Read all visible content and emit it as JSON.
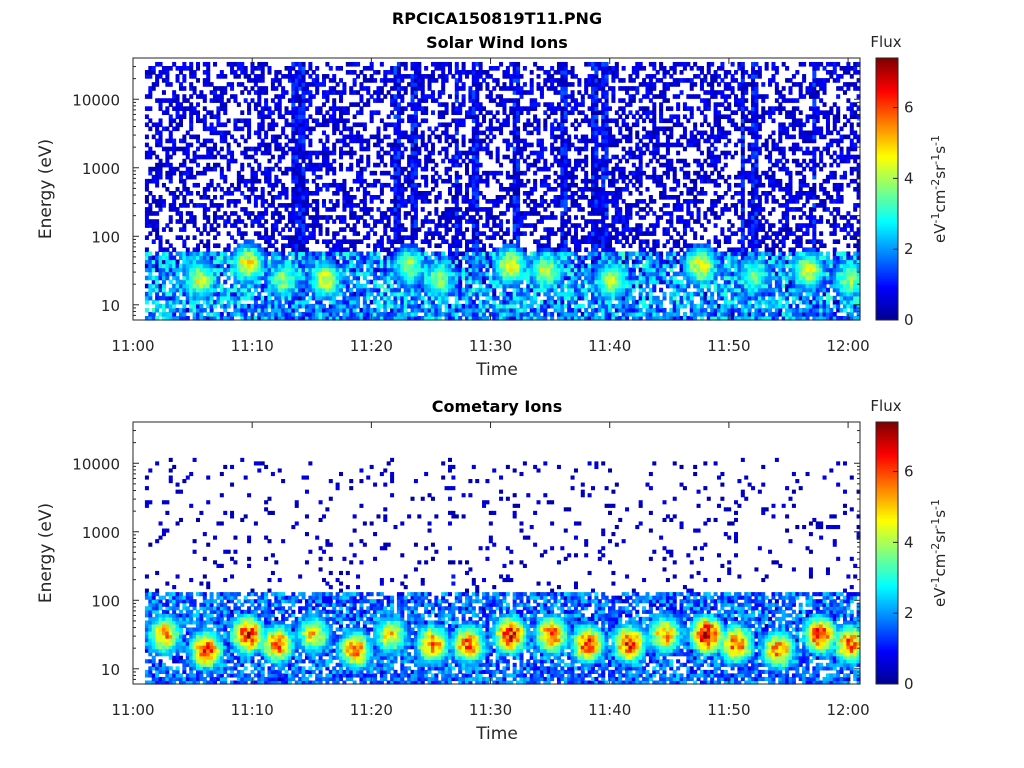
{
  "figure_title": "RPCICA150819T11.PNG",
  "colormap": [
    "#00008f",
    "#0000ff",
    "#0080ff",
    "#00ffff",
    "#80ff80",
    "#ffff00",
    "#ff8000",
    "#ff0000",
    "#800000"
  ],
  "chart_data": [
    {
      "type": "heatmap",
      "title": "Solar Wind Ions",
      "xlabel": "Time",
      "ylabel": "Energy (eV)",
      "x_tick_labels": [
        "11:00",
        "11:10",
        "11:20",
        "11:30",
        "11:40",
        "11:50",
        "12:00"
      ],
      "x_tick_minutes": [
        0,
        10,
        20,
        30,
        40,
        50,
        60
      ],
      "xlim_minutes": [
        0,
        61
      ],
      "y_scale": "log",
      "y_tick_labels": [
        "10",
        "100",
        "1000",
        "10000"
      ],
      "y_tick_values": [
        10,
        100,
        1000,
        10000
      ],
      "ylim": [
        6,
        40000
      ],
      "colorbar": {
        "title": "Flux",
        "label": "eV-1cm-2sr-1s-1",
        "tick_labels": [
          "0",
          "2",
          "4",
          "6"
        ],
        "range": [
          0,
          7.4
        ]
      },
      "time_min_range": [
        1,
        61
      ],
      "energy_range": [
        6,
        35000
      ],
      "scatter_density": 0.45,
      "background_level": 1.0,
      "low_energy_band": {
        "energy_range": [
          10,
          60
        ],
        "level": 2.5
      },
      "peaks": [
        {
          "t": 5.5,
          "e": 22,
          "level": 4.5
        },
        {
          "t": 9.5,
          "e": 38,
          "level": 4.8
        },
        {
          "t": 12.5,
          "e": 22,
          "level": 4.0
        },
        {
          "t": 16.0,
          "e": 22,
          "level": 4.5
        },
        {
          "t": 23.0,
          "e": 35,
          "level": 4.0
        },
        {
          "t": 25.5,
          "e": 22,
          "level": 4.0
        },
        {
          "t": 31.5,
          "e": 35,
          "level": 4.8
        },
        {
          "t": 34.5,
          "e": 30,
          "level": 4.5
        },
        {
          "t": 40.0,
          "e": 22,
          "level": 4.3
        },
        {
          "t": 47.5,
          "e": 35,
          "level": 4.8
        },
        {
          "t": 52.0,
          "e": 25,
          "level": 3.8
        },
        {
          "t": 56.5,
          "e": 30,
          "level": 4.5
        },
        {
          "t": 60.0,
          "e": 22,
          "level": 4.0
        }
      ],
      "vertical_streaks_minutes": [
        13.5,
        14.0,
        22.0,
        23.5,
        27.0,
        28.5,
        32.0,
        36.0,
        38.5,
        39.5,
        51.0,
        52.0,
        57.0
      ]
    },
    {
      "type": "heatmap",
      "title": "Cometary Ions",
      "xlabel": "Time",
      "ylabel": "Energy (eV)",
      "x_tick_labels": [
        "11:00",
        "11:10",
        "11:20",
        "11:30",
        "11:40",
        "11:50",
        "12:00"
      ],
      "x_tick_minutes": [
        0,
        10,
        20,
        30,
        40,
        50,
        60
      ],
      "xlim_minutes": [
        0,
        61
      ],
      "y_scale": "log",
      "y_tick_labels": [
        "10",
        "100",
        "1000",
        "10000"
      ],
      "y_tick_values": [
        10,
        100,
        1000,
        10000
      ],
      "ylim": [
        6,
        40000
      ],
      "colorbar": {
        "title": "Flux",
        "label": "eV-1cm-2sr-1s-1",
        "tick_labels": [
          "0",
          "2",
          "4",
          "6"
        ],
        "range": [
          0,
          7.4
        ]
      },
      "time_min_range": [
        1,
        61
      ],
      "energy_range": [
        6,
        12000
      ],
      "scatter_density": 0.06,
      "background_level": 0.7,
      "low_energy_band": {
        "energy_range": [
          10,
          130
        ],
        "level": 2.0
      },
      "peaks": [
        {
          "t": 2.5,
          "e": 30,
          "level": 5.5
        },
        {
          "t": 6.0,
          "e": 18,
          "level": 6.2
        },
        {
          "t": 9.5,
          "e": 30,
          "level": 6.6
        },
        {
          "t": 12.0,
          "e": 22,
          "level": 6.0
        },
        {
          "t": 15.0,
          "e": 30,
          "level": 5.0
        },
        {
          "t": 18.5,
          "e": 18,
          "level": 5.8
        },
        {
          "t": 21.5,
          "e": 30,
          "level": 5.0
        },
        {
          "t": 25.0,
          "e": 22,
          "level": 5.8
        },
        {
          "t": 28.0,
          "e": 22,
          "level": 6.0
        },
        {
          "t": 31.5,
          "e": 30,
          "level": 6.6
        },
        {
          "t": 35.0,
          "e": 30,
          "level": 6.0
        },
        {
          "t": 38.0,
          "e": 22,
          "level": 6.2
        },
        {
          "t": 41.5,
          "e": 22,
          "level": 6.4
        },
        {
          "t": 44.5,
          "e": 30,
          "level": 5.5
        },
        {
          "t": 48.0,
          "e": 30,
          "level": 7.0
        },
        {
          "t": 50.5,
          "e": 22,
          "level": 6.2
        },
        {
          "t": 54.0,
          "e": 18,
          "level": 5.8
        },
        {
          "t": 57.5,
          "e": 30,
          "level": 6.4
        },
        {
          "t": 60.0,
          "e": 22,
          "level": 6.0
        }
      ],
      "vertical_streaks_minutes": [
        26.5
      ]
    }
  ]
}
